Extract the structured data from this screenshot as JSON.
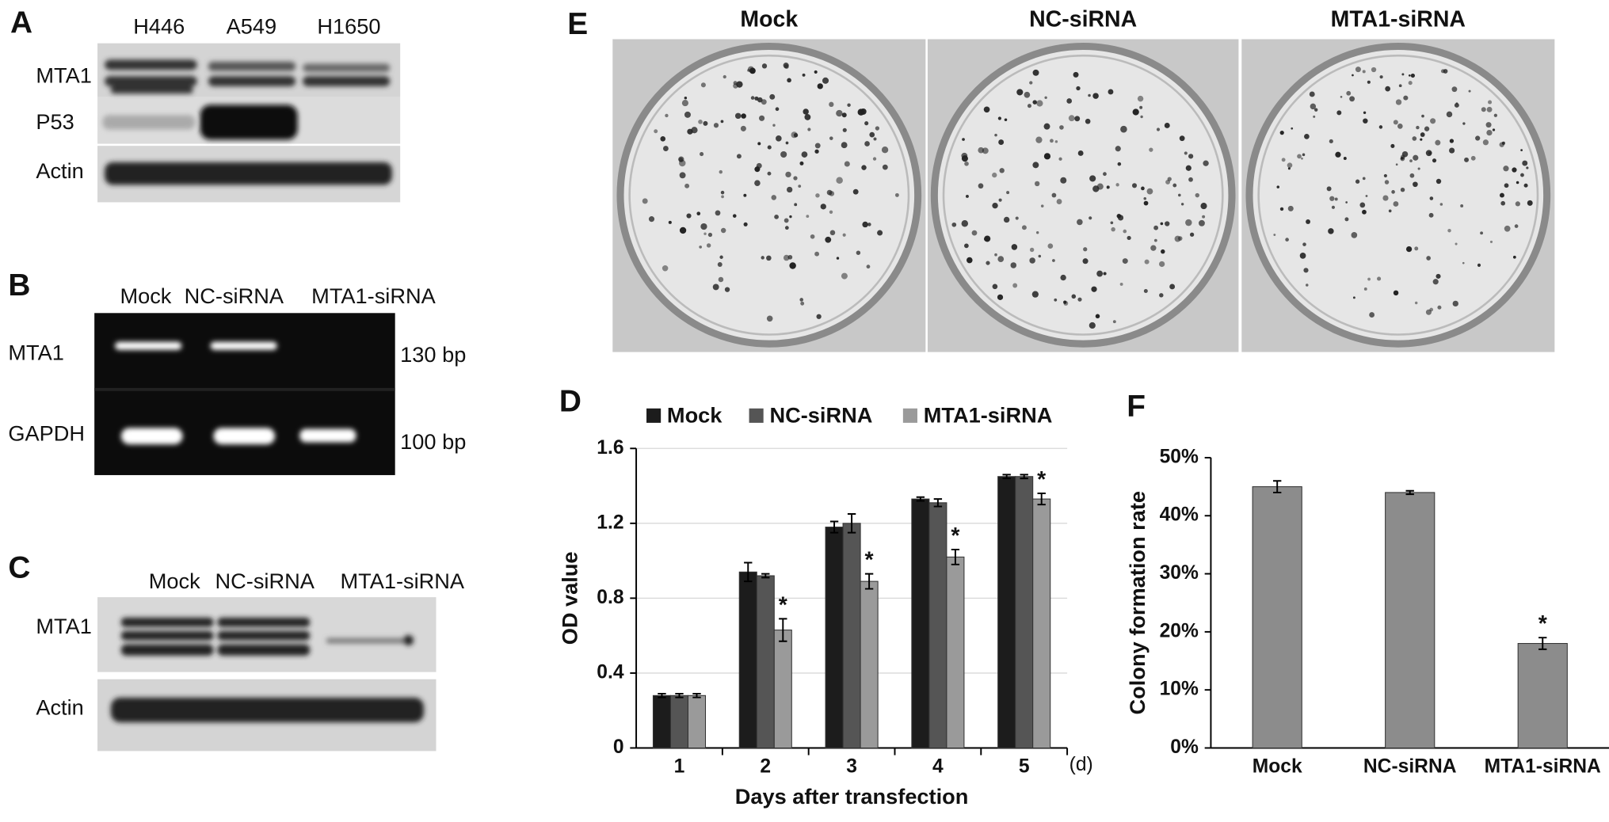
{
  "panels": {
    "A": {
      "letter": "A",
      "lanes": [
        "H446",
        "A549",
        "H1650"
      ],
      "rows": [
        "MTA1",
        "P53",
        "Actin"
      ]
    },
    "B": {
      "letter": "B",
      "lanes": [
        "Mock",
        "NC-siRNA",
        "MTA1-siRNA"
      ],
      "rows": [
        "MTA1",
        "GAPDH"
      ],
      "sizes": [
        "130 bp",
        "100 bp"
      ]
    },
    "C": {
      "letter": "C",
      "lanes": [
        "Mock",
        "NC-siRNA",
        "MTA1-siRNA"
      ],
      "rows": [
        "MTA1",
        "Actin"
      ]
    },
    "E": {
      "letter": "E",
      "titles": [
        "Mock",
        "NC-siRNA",
        "MTA1-siRNA"
      ]
    }
  },
  "chart_data": [
    {
      "type": "bar",
      "panel_label": "D",
      "xlabel": "Days after transfection",
      "x_unit": "(d)",
      "ylabel": "OD  value",
      "categories": [
        "1",
        "2",
        "3",
        "4",
        "5"
      ],
      "series": [
        {
          "name": "Mock",
          "color": "#1c1c1c",
          "values": [
            0.28,
            0.94,
            1.18,
            1.33,
            1.45
          ],
          "errors": [
            0.01,
            0.05,
            0.03,
            0.01,
            0.01
          ],
          "significance": [
            null,
            null,
            null,
            null,
            null
          ]
        },
        {
          "name": "NC-siRNA",
          "color": "#555555",
          "values": [
            0.28,
            0.92,
            1.2,
            1.31,
            1.45
          ],
          "errors": [
            0.01,
            0.01,
            0.05,
            0.02,
            0.01
          ],
          "significance": [
            null,
            null,
            null,
            null,
            null
          ]
        },
        {
          "name": "MTA1-siRNA",
          "color": "#9a9a9a",
          "values": [
            0.28,
            0.63,
            0.89,
            1.02,
            1.33
          ],
          "errors": [
            0.01,
            0.06,
            0.04,
            0.04,
            0.03
          ],
          "significance": [
            null,
            "*",
            "*",
            "*",
            "*"
          ]
        }
      ],
      "ylim": [
        0,
        1.6
      ],
      "yticks": [
        0,
        0.4,
        0.8,
        1.2,
        1.6
      ],
      "grid": true,
      "legend": "top"
    },
    {
      "type": "bar",
      "panel_label": "F",
      "ylabel": "Colony formation rate",
      "categories": [
        "Mock",
        "NC-siRNA",
        "MTA1-siRNA"
      ],
      "values": [
        45,
        44,
        18
      ],
      "errors": [
        1,
        0.3,
        1
      ],
      "significance": [
        null,
        null,
        "*"
      ],
      "color": "#8c8c8c",
      "ylim": [
        0,
        50
      ],
      "yticks": [
        {
          "value": 0,
          "label": "0%"
        },
        {
          "value": 10,
          "label": "10%"
        },
        {
          "value": 20,
          "label": "20%"
        },
        {
          "value": 30,
          "label": "30%"
        },
        {
          "value": 40,
          "label": "40%"
        },
        {
          "value": 50,
          "label": "50%"
        }
      ],
      "grid": false
    }
  ]
}
